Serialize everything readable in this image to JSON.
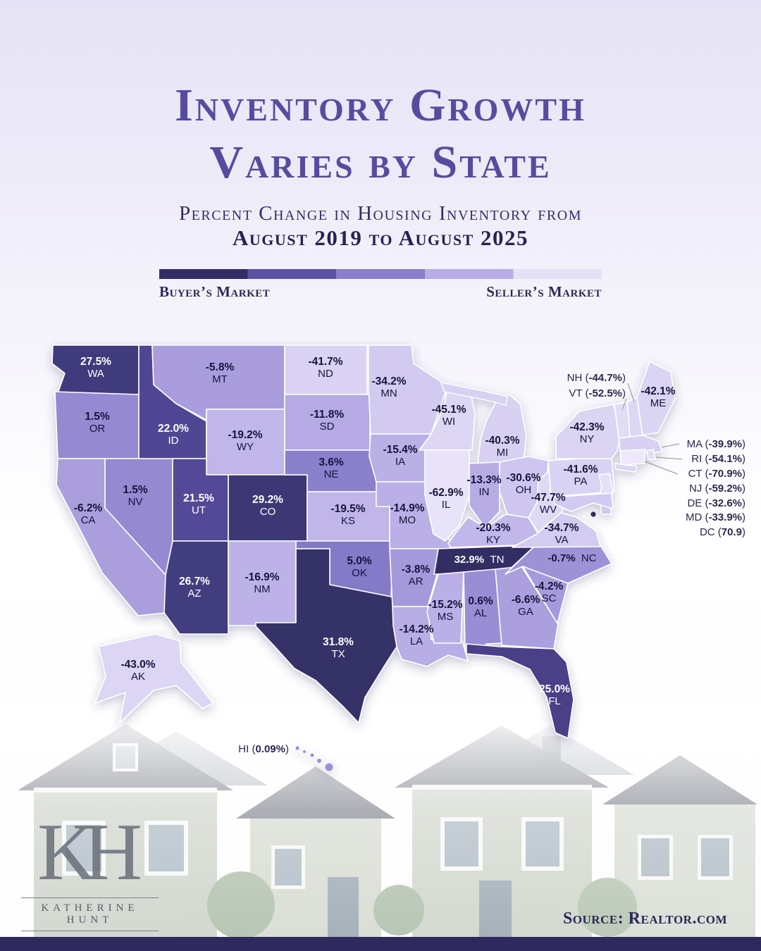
{
  "header": {
    "title_line1": "Inventory Growth",
    "title_line2": "Varies by State",
    "subtitle_line1": "Percent Change in Housing Inventory from",
    "subtitle_line2": "August 2019 to August 2025"
  },
  "legend": {
    "left_label": "Buyer’s Market",
    "right_label": "Seller’s Market",
    "segments": [
      "#322e63",
      "#5b51a3",
      "#8b7ecb",
      "#b9ade5",
      "#e6e0f7"
    ]
  },
  "chart_data": {
    "type": "choropleth",
    "title": "Inventory Growth Varies by State",
    "subtitle": "Percent Change in Housing Inventory from August 2019 to August 2025",
    "unit": "%",
    "color_scale": [
      {
        "value": 33,
        "color": "#322e63"
      },
      {
        "value": 20,
        "color": "#564c9d"
      },
      {
        "value": 5,
        "color": "#837ac8"
      },
      {
        "value": 0,
        "color": "#9c90d6"
      },
      {
        "value": -10,
        "color": "#b2a7e2"
      },
      {
        "value": -25,
        "color": "#c9bfed"
      },
      {
        "value": -45,
        "color": "#ded7f4"
      },
      {
        "value": -75,
        "color": "#efebfb"
      }
    ],
    "states": [
      {
        "abbr": "WA",
        "value": 27.5,
        "value_text": "27.5%"
      },
      {
        "abbr": "OR",
        "value": 1.5,
        "value_text": "1.5%"
      },
      {
        "abbr": "CA",
        "value": -6.2,
        "value_text": "-6.2%"
      },
      {
        "abbr": "NV",
        "value": 1.5,
        "value_text": "1.5%"
      },
      {
        "abbr": "ID",
        "value": 22.0,
        "value_text": "22.0%"
      },
      {
        "abbr": "MT",
        "value": -5.8,
        "value_text": "-5.8%"
      },
      {
        "abbr": "WY",
        "value": -19.2,
        "value_text": "-19.2%"
      },
      {
        "abbr": "UT",
        "value": 21.5,
        "value_text": "21.5%"
      },
      {
        "abbr": "CO",
        "value": 29.2,
        "value_text": "29.2%"
      },
      {
        "abbr": "AZ",
        "value": 26.7,
        "value_text": "26.7%"
      },
      {
        "abbr": "NM",
        "value": -16.9,
        "value_text": "-16.9%"
      },
      {
        "abbr": "ND",
        "value": -41.7,
        "value_text": "-41.7%"
      },
      {
        "abbr": "SD",
        "value": -11.8,
        "value_text": "-11.8%"
      },
      {
        "abbr": "NE",
        "value": 3.6,
        "value_text": "3.6%"
      },
      {
        "abbr": "KS",
        "value": -19.5,
        "value_text": "-19.5%"
      },
      {
        "abbr": "OK",
        "value": 5.0,
        "value_text": "5.0%"
      },
      {
        "abbr": "TX",
        "value": 31.8,
        "value_text": "31.8%"
      },
      {
        "abbr": "MN",
        "value": -34.2,
        "value_text": "-34.2%"
      },
      {
        "abbr": "IA",
        "value": -15.4,
        "value_text": "-15.4%"
      },
      {
        "abbr": "MO",
        "value": -14.9,
        "value_text": "-14.9%"
      },
      {
        "abbr": "AR",
        "value": -3.8,
        "value_text": "-3.8%"
      },
      {
        "abbr": "LA",
        "value": -14.2,
        "value_text": "-14.2%"
      },
      {
        "abbr": "WI",
        "value": -45.1,
        "value_text": "-45.1%"
      },
      {
        "abbr": "IL",
        "value": -62.9,
        "value_text": "-62.9%"
      },
      {
        "abbr": "MI",
        "value": -40.3,
        "value_text": "-40.3%"
      },
      {
        "abbr": "IN",
        "value": -13.3,
        "value_text": "-13.3%"
      },
      {
        "abbr": "OH",
        "value": -30.6,
        "value_text": "-30.6%"
      },
      {
        "abbr": "KY",
        "value": -20.3,
        "value_text": "-20.3%"
      },
      {
        "abbr": "TN",
        "value": 32.9,
        "value_text": "32.9%"
      },
      {
        "abbr": "MS",
        "value": -15.2,
        "value_text": "-15.2%"
      },
      {
        "abbr": "AL",
        "value": 0.6,
        "value_text": "0.6%"
      },
      {
        "abbr": "GA",
        "value": -6.6,
        "value_text": "-6.6%"
      },
      {
        "abbr": "FL",
        "value": 25.0,
        "value_text": "25.0%"
      },
      {
        "abbr": "SC",
        "value": -4.2,
        "value_text": "-4.2%"
      },
      {
        "abbr": "NC",
        "value": -0.7,
        "value_text": "-0.7%"
      },
      {
        "abbr": "VA",
        "value": -34.7,
        "value_text": "-34.7%"
      },
      {
        "abbr": "WV",
        "value": -47.7,
        "value_text": "-47.7%"
      },
      {
        "abbr": "PA",
        "value": -41.6,
        "value_text": "-41.6%"
      },
      {
        "abbr": "NY",
        "value": -42.3,
        "value_text": "-42.3%"
      },
      {
        "abbr": "ME",
        "value": -42.1,
        "value_text": "-42.1%"
      },
      {
        "abbr": "NH",
        "value": -44.7,
        "value_text": "-44.7%"
      },
      {
        "abbr": "VT",
        "value": -52.5,
        "value_text": "-52.5%"
      },
      {
        "abbr": "MA",
        "value": -39.9,
        "value_text": "-39.9%"
      },
      {
        "abbr": "RI",
        "value": -54.1,
        "value_text": "-54.1%"
      },
      {
        "abbr": "CT",
        "value": -70.9,
        "value_text": "-70.9%"
      },
      {
        "abbr": "NJ",
        "value": -59.2,
        "value_text": "-59.2%"
      },
      {
        "abbr": "DE",
        "value": -32.6,
        "value_text": "-32.6%"
      },
      {
        "abbr": "MD",
        "value": -33.9,
        "value_text": "-33.9%"
      },
      {
        "abbr": "DC",
        "value": 70.9,
        "value_text": "70.9"
      },
      {
        "abbr": "AK",
        "value": -43.0,
        "value_text": "-43.0%"
      },
      {
        "abbr": "HI",
        "value": 0.09,
        "value_text": "0.09%"
      }
    ]
  },
  "footer": {
    "source": "Source: Realtor.com",
    "logo_initials": "KH",
    "logo_name": "Katherine Hunt"
  }
}
